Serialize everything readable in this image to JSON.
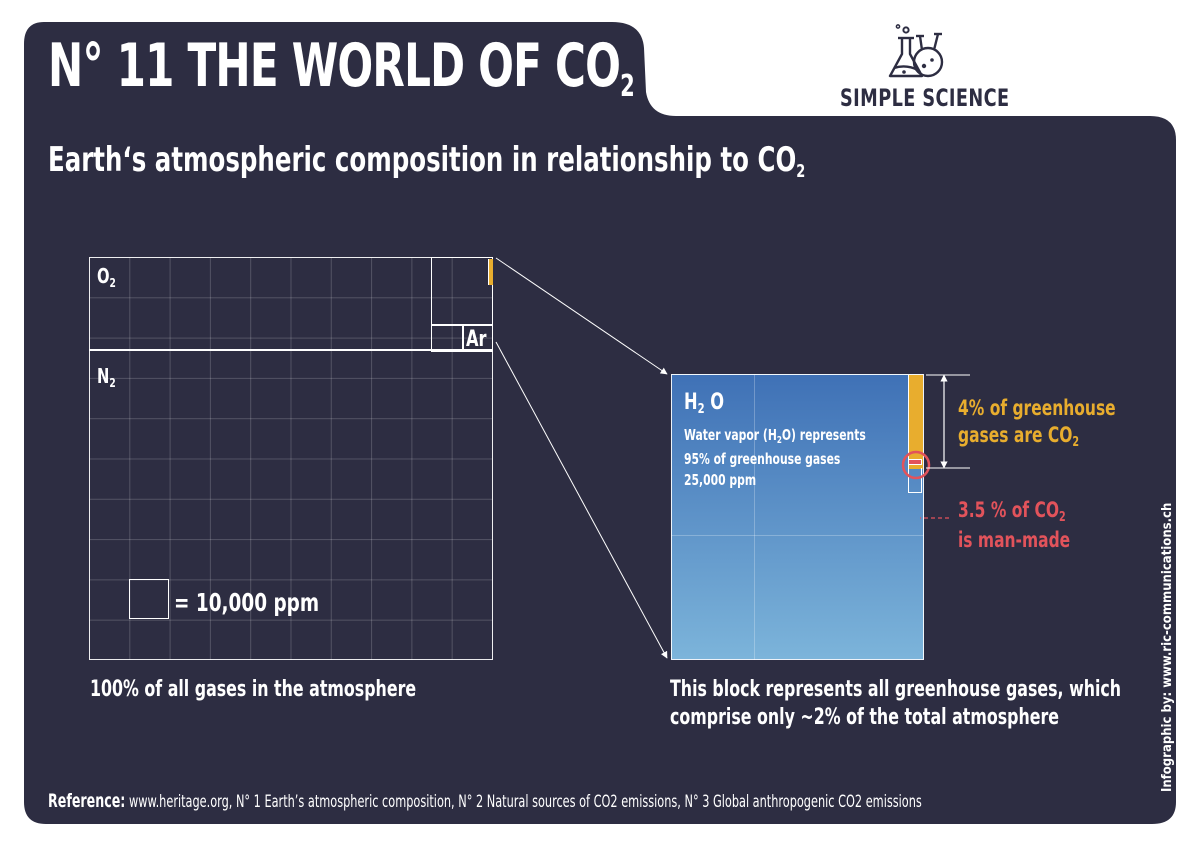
{
  "header": {
    "title_prefix": "N° 11  THE WORLD OF CO",
    "title_subscript": "2",
    "subtitle_prefix": "Earth‘s atmospheric composition in relationship to CO",
    "subtitle_subscript": "2"
  },
  "logo": {
    "text": "SIMPLE SCIENCE",
    "icon": "flask-beakers-icon"
  },
  "atmosphere_block": {
    "o2_label": "O",
    "o2_sub": "2",
    "n2_label": "N",
    "n2_sub": "2",
    "ar_label": "Ar",
    "legend_text": "= 10,000 ppm",
    "caption": "100% of all gases in the atmosphere",
    "o2_fraction": 0.21,
    "n2_fraction": 0.78
  },
  "greenhouse_block": {
    "h2o_label": "H",
    "h2o_sub": "2",
    "h2o_label_end": "O",
    "description_line1_a": "Water vapor (H",
    "description_line1_sub": "2",
    "description_line1_b": "O) represents",
    "description_line2": "95% of greenhouse gases",
    "description_line3": "25,000 ppm",
    "caption_line1": "This block represents all greenhouse gases, which",
    "caption_line2": "comprise only ~2% of the total atmosphere",
    "co2_fraction": 0.04,
    "manmade_fraction": 0.035
  },
  "annotations": {
    "co2_line1": "4% of greenhouse",
    "co2_line2_a": "gases are CO",
    "co2_line2_sub": "2",
    "manmade_line1_a": "3.5 % of CO",
    "manmade_line1_sub": "2",
    "manmade_line2": "is man-made"
  },
  "reference": {
    "label": "Reference:",
    "text": "www.heritage.org,  N° 1 Earth’s atmospheric composition, N° 2 Natural sources of CO2 emissions, N° 3 Global anthropogenic CO2 emissions"
  },
  "credit": "Infographic by: www.ric-communications.ch",
  "colors": {
    "background": "#2d2d42",
    "block_top": "#3f71b6",
    "block_bottom": "#7cb4da",
    "co2": "#e8ad2e",
    "manmade": "#e2535b"
  }
}
